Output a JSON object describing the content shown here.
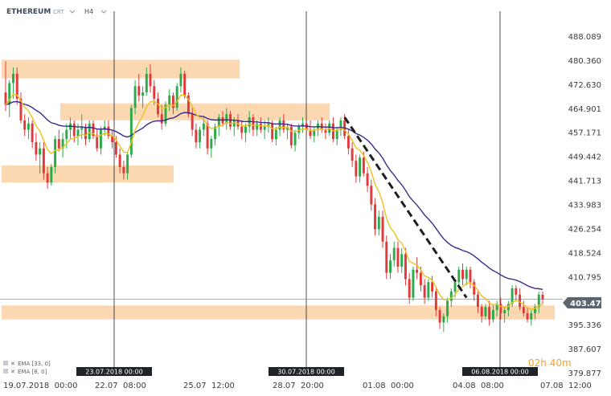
{
  "header": {
    "symbol": "ETHEREUM",
    "source": "CRT",
    "dropdown_icon": "chevron-down-icon",
    "timeframe": "H4"
  },
  "legend": [
    {
      "icon": "close-icon",
      "label": "EMA [33, 0]",
      "color": "#3b2a8a"
    },
    {
      "icon": "close-icon",
      "label": "EMA [8, 0]",
      "color": "#f0c020"
    }
  ],
  "countdown": "02h 40m",
  "current_price": "403.470",
  "colors": {
    "up": "#2eaa4a",
    "down": "#e03a3a",
    "ema8": "#f0c020",
    "ema33": "#3b2a8a",
    "zone": "#fbd4a8",
    "trendline": "#1e1e1e",
    "marker_bg": "#1f2328",
    "price_tag": "#5c6670"
  },
  "chart_data": {
    "type": "candlestick",
    "y_axis": {
      "range": [
        379.877,
        493.0
      ],
      "ticks": [
        "488.089",
        "480.360",
        "472.630",
        "464.901",
        "457.171",
        "449.442",
        "441.713",
        "433.983",
        "426.254",
        "418.524",
        "410.795",
        "403.470",
        "395.336",
        "387.607",
        "379.877"
      ]
    },
    "x_axis": {
      "ticks": [
        "19.07.2018  00:00",
        "22.07  08:00",
        "25.07  12:00",
        "28.07  20:00",
        "01.08  00:00",
        "04.08  08:00",
        "07.08  12:00"
      ]
    },
    "vertical_markers": [
      "23.07.2018 00:00",
      "30.07.2018 00:00",
      "06.08.2018 00:00"
    ],
    "horizontal_zones": [
      {
        "low": 474.5,
        "high": 480.5
      },
      {
        "low": 461.0,
        "high": 466.5
      },
      {
        "low": 441.0,
        "high": 446.5
      },
      {
        "low": 397.0,
        "high": 401.5
      }
    ],
    "trendline": {
      "from": {
        "index": 89,
        "price": 462.0
      },
      "to": {
        "index": 121,
        "price": 404.0
      }
    },
    "candles": [
      {
        "o": 470.0,
        "h": 480.0,
        "l": 464.0,
        "c": 466.0
      },
      {
        "o": 466.0,
        "h": 474.0,
        "l": 462.0,
        "c": 473.0
      },
      {
        "o": 473.0,
        "h": 478.0,
        "l": 468.0,
        "c": 476.0
      },
      {
        "o": 476.0,
        "h": 478.0,
        "l": 466.0,
        "c": 468.0
      },
      {
        "o": 468.0,
        "h": 470.0,
        "l": 460.0,
        "c": 461.0
      },
      {
        "o": 461.0,
        "h": 463.0,
        "l": 456.0,
        "c": 458.0
      },
      {
        "o": 458.0,
        "h": 462.0,
        "l": 455.0,
        "c": 460.0
      },
      {
        "o": 460.0,
        "h": 461.0,
        "l": 452.0,
        "c": 454.0
      },
      {
        "o": 454.0,
        "h": 457.0,
        "l": 448.0,
        "c": 450.0
      },
      {
        "o": 450.0,
        "h": 454.0,
        "l": 444.0,
        "c": 452.0
      },
      {
        "o": 452.0,
        "h": 454.0,
        "l": 442.0,
        "c": 444.0
      },
      {
        "o": 444.0,
        "h": 446.0,
        "l": 439.0,
        "c": 441.0
      },
      {
        "o": 441.0,
        "h": 447.0,
        "l": 440.0,
        "c": 446.0
      },
      {
        "o": 446.0,
        "h": 456.0,
        "l": 444.0,
        "c": 455.0
      },
      {
        "o": 455.0,
        "h": 458.0,
        "l": 451.0,
        "c": 452.0
      },
      {
        "o": 452.0,
        "h": 457.0,
        "l": 449.0,
        "c": 455.0
      },
      {
        "o": 455.0,
        "h": 460.0,
        "l": 452.0,
        "c": 458.0
      },
      {
        "o": 458.0,
        "h": 462.0,
        "l": 455.0,
        "c": 460.0
      },
      {
        "o": 460.0,
        "h": 461.0,
        "l": 454.0,
        "c": 456.0
      },
      {
        "o": 456.0,
        "h": 460.0,
        "l": 453.0,
        "c": 458.0
      },
      {
        "o": 458.0,
        "h": 463.0,
        "l": 455.0,
        "c": 459.0
      },
      {
        "o": 459.0,
        "h": 460.0,
        "l": 453.0,
        "c": 455.0
      },
      {
        "o": 455.0,
        "h": 461.0,
        "l": 454.0,
        "c": 460.0
      },
      {
        "o": 460.0,
        "h": 461.0,
        "l": 455.0,
        "c": 456.0
      },
      {
        "o": 456.0,
        "h": 458.0,
        "l": 451.0,
        "c": 452.0
      },
      {
        "o": 452.0,
        "h": 459.0,
        "l": 450.0,
        "c": 458.0
      },
      {
        "o": 458.0,
        "h": 461.0,
        "l": 456.0,
        "c": 459.0
      },
      {
        "o": 459.0,
        "h": 461.0,
        "l": 455.0,
        "c": 456.0
      },
      {
        "o": 456.0,
        "h": 458.0,
        "l": 452.0,
        "c": 454.0
      },
      {
        "o": 454.0,
        "h": 456.0,
        "l": 449.0,
        "c": 450.0
      },
      {
        "o": 450.0,
        "h": 452.0,
        "l": 444.0,
        "c": 446.0
      },
      {
        "o": 446.0,
        "h": 448.0,
        "l": 442.0,
        "c": 444.0
      },
      {
        "o": 444.0,
        "h": 451.0,
        "l": 442.0,
        "c": 450.0
      },
      {
        "o": 450.0,
        "h": 466.0,
        "l": 449.0,
        "c": 465.0
      },
      {
        "o": 465.0,
        "h": 474.0,
        "l": 463.0,
        "c": 472.0
      },
      {
        "o": 472.0,
        "h": 476.0,
        "l": 467.0,
        "c": 469.0
      },
      {
        "o": 469.0,
        "h": 472.0,
        "l": 465.0,
        "c": 470.0
      },
      {
        "o": 470.0,
        "h": 478.0,
        "l": 469.0,
        "c": 476.0
      },
      {
        "o": 476.0,
        "h": 479.0,
        "l": 470.0,
        "c": 472.0
      },
      {
        "o": 472.0,
        "h": 474.0,
        "l": 466.0,
        "c": 468.0
      },
      {
        "o": 468.0,
        "h": 470.0,
        "l": 462.0,
        "c": 463.0
      },
      {
        "o": 463.0,
        "h": 466.0,
        "l": 458.0,
        "c": 460.0
      },
      {
        "o": 460.0,
        "h": 467.0,
        "l": 459.0,
        "c": 466.0
      },
      {
        "o": 466.0,
        "h": 471.0,
        "l": 464.0,
        "c": 469.0
      },
      {
        "o": 469.0,
        "h": 470.0,
        "l": 463.0,
        "c": 465.0
      },
      {
        "o": 465.0,
        "h": 473.0,
        "l": 464.0,
        "c": 472.0
      },
      {
        "o": 472.0,
        "h": 478.0,
        "l": 470.0,
        "c": 476.0
      },
      {
        "o": 476.0,
        "h": 477.0,
        "l": 468.0,
        "c": 469.0
      },
      {
        "o": 469.0,
        "h": 470.0,
        "l": 462.0,
        "c": 463.0
      },
      {
        "o": 463.0,
        "h": 465.0,
        "l": 456.0,
        "c": 458.0
      },
      {
        "o": 458.0,
        "h": 460.0,
        "l": 452.0,
        "c": 454.0
      },
      {
        "o": 454.0,
        "h": 459.0,
        "l": 452.0,
        "c": 458.0
      },
      {
        "o": 458.0,
        "h": 462.0,
        "l": 456.0,
        "c": 460.0
      },
      {
        "o": 460.0,
        "h": 461.0,
        "l": 450.0,
        "c": 452.0
      },
      {
        "o": 452.0,
        "h": 456.0,
        "l": 449.0,
        "c": 455.0
      },
      {
        "o": 455.0,
        "h": 460.0,
        "l": 453.0,
        "c": 459.0
      },
      {
        "o": 459.0,
        "h": 463.0,
        "l": 456.0,
        "c": 462.0
      },
      {
        "o": 462.0,
        "h": 464.0,
        "l": 459.0,
        "c": 460.0
      },
      {
        "o": 460.0,
        "h": 465.0,
        "l": 458.0,
        "c": 463.0
      },
      {
        "o": 463.0,
        "h": 464.0,
        "l": 458.0,
        "c": 459.0
      },
      {
        "o": 459.0,
        "h": 462.0,
        "l": 456.0,
        "c": 461.0
      },
      {
        "o": 461.0,
        "h": 463.0,
        "l": 458.0,
        "c": 459.0
      },
      {
        "o": 459.0,
        "h": 461.0,
        "l": 455.0,
        "c": 457.0
      },
      {
        "o": 457.0,
        "h": 460.0,
        "l": 454.0,
        "c": 459.0
      },
      {
        "o": 459.0,
        "h": 464.0,
        "l": 457.0,
        "c": 462.0
      },
      {
        "o": 462.0,
        "h": 463.0,
        "l": 456.0,
        "c": 458.0
      },
      {
        "o": 458.0,
        "h": 461.0,
        "l": 456.0,
        "c": 460.0
      },
      {
        "o": 460.0,
        "h": 462.0,
        "l": 457.0,
        "c": 458.0
      },
      {
        "o": 458.0,
        "h": 461.0,
        "l": 455.0,
        "c": 459.0
      },
      {
        "o": 459.0,
        "h": 462.0,
        "l": 457.0,
        "c": 460.0
      },
      {
        "o": 460.0,
        "h": 461.0,
        "l": 454.0,
        "c": 455.0
      },
      {
        "o": 455.0,
        "h": 459.0,
        "l": 453.0,
        "c": 458.0
      },
      {
        "o": 458.0,
        "h": 462.0,
        "l": 456.0,
        "c": 461.0
      },
      {
        "o": 461.0,
        "h": 463.0,
        "l": 457.0,
        "c": 458.0
      },
      {
        "o": 458.0,
        "h": 460.0,
        "l": 455.0,
        "c": 459.0
      },
      {
        "o": 459.0,
        "h": 460.0,
        "l": 452.0,
        "c": 453.0
      },
      {
        "o": 453.0,
        "h": 458.0,
        "l": 451.0,
        "c": 457.0
      },
      {
        "o": 457.0,
        "h": 460.0,
        "l": 455.0,
        "c": 459.0
      },
      {
        "o": 459.0,
        "h": 462.0,
        "l": 457.0,
        "c": 460.0
      },
      {
        "o": 460.0,
        "h": 462.0,
        "l": 456.0,
        "c": 458.0
      },
      {
        "o": 458.0,
        "h": 461.0,
        "l": 455.0,
        "c": 456.0
      },
      {
        "o": 456.0,
        "h": 459.0,
        "l": 454.0,
        "c": 458.0
      },
      {
        "o": 458.0,
        "h": 461.0,
        "l": 456.0,
        "c": 460.0
      },
      {
        "o": 460.0,
        "h": 462.0,
        "l": 457.0,
        "c": 458.0
      },
      {
        "o": 458.0,
        "h": 460.0,
        "l": 455.0,
        "c": 457.0
      },
      {
        "o": 457.0,
        "h": 461.0,
        "l": 456.0,
        "c": 460.0
      },
      {
        "o": 460.0,
        "h": 462.0,
        "l": 454.0,
        "c": 455.0
      },
      {
        "o": 455.0,
        "h": 459.0,
        "l": 453.0,
        "c": 458.0
      },
      {
        "o": 458.0,
        "h": 462.0,
        "l": 456.0,
        "c": 461.0
      },
      {
        "o": 461.0,
        "h": 463.0,
        "l": 455.0,
        "c": 456.0
      },
      {
        "o": 456.0,
        "h": 458.0,
        "l": 450.0,
        "c": 452.0
      },
      {
        "o": 452.0,
        "h": 454.0,
        "l": 446.0,
        "c": 448.0
      },
      {
        "o": 448.0,
        "h": 450.0,
        "l": 441.0,
        "c": 443.0
      },
      {
        "o": 443.0,
        "h": 450.0,
        "l": 441.0,
        "c": 449.0
      },
      {
        "o": 449.0,
        "h": 451.0,
        "l": 443.0,
        "c": 444.0
      },
      {
        "o": 444.0,
        "h": 446.0,
        "l": 438.0,
        "c": 440.0
      },
      {
        "o": 440.0,
        "h": 442.0,
        "l": 432.0,
        "c": 434.0
      },
      {
        "o": 434.0,
        "h": 436.0,
        "l": 424.0,
        "c": 426.0
      },
      {
        "o": 426.0,
        "h": 432.0,
        "l": 424.0,
        "c": 430.0
      },
      {
        "o": 430.0,
        "h": 432.0,
        "l": 420.0,
        "c": 422.0
      },
      {
        "o": 422.0,
        "h": 424.0,
        "l": 410.0,
        "c": 412.0
      },
      {
        "o": 412.0,
        "h": 418.0,
        "l": 410.0,
        "c": 416.0
      },
      {
        "o": 416.0,
        "h": 422.0,
        "l": 414.0,
        "c": 420.0
      },
      {
        "o": 420.0,
        "h": 422.0,
        "l": 412.0,
        "c": 414.0
      },
      {
        "o": 414.0,
        "h": 420.0,
        "l": 412.0,
        "c": 418.0
      },
      {
        "o": 418.0,
        "h": 420.0,
        "l": 408.0,
        "c": 410.0
      },
      {
        "o": 410.0,
        "h": 412.0,
        "l": 402.0,
        "c": 404.0
      },
      {
        "o": 404.0,
        "h": 414.0,
        "l": 403.0,
        "c": 413.0
      },
      {
        "o": 413.0,
        "h": 417.0,
        "l": 410.0,
        "c": 412.0
      },
      {
        "o": 412.0,
        "h": 414.0,
        "l": 406.0,
        "c": 408.0
      },
      {
        "o": 408.0,
        "h": 410.0,
        "l": 402.0,
        "c": 404.0
      },
      {
        "o": 404.0,
        "h": 410.0,
        "l": 403.0,
        "c": 409.0
      },
      {
        "o": 409.0,
        "h": 411.0,
        "l": 404.0,
        "c": 406.0
      },
      {
        "o": 406.0,
        "h": 407.0,
        "l": 398.0,
        "c": 400.0
      },
      {
        "o": 400.0,
        "h": 401.0,
        "l": 394.0,
        "c": 396.0
      },
      {
        "o": 396.0,
        "h": 399.0,
        "l": 393.0,
        "c": 398.0
      },
      {
        "o": 398.0,
        "h": 404.0,
        "l": 396.0,
        "c": 403.0
      },
      {
        "o": 403.0,
        "h": 407.0,
        "l": 401.0,
        "c": 406.0
      },
      {
        "o": 406.0,
        "h": 410.0,
        "l": 404.0,
        "c": 409.0
      },
      {
        "o": 409.0,
        "h": 414.0,
        "l": 407.0,
        "c": 413.0
      },
      {
        "o": 413.0,
        "h": 415.0,
        "l": 408.0,
        "c": 410.0
      },
      {
        "o": 410.0,
        "h": 414.0,
        "l": 408.0,
        "c": 413.0
      },
      {
        "o": 413.0,
        "h": 414.0,
        "l": 407.0,
        "c": 409.0
      },
      {
        "o": 409.0,
        "h": 410.0,
        "l": 403.0,
        "c": 405.0
      },
      {
        "o": 405.0,
        "h": 406.0,
        "l": 399.0,
        "c": 401.0
      },
      {
        "o": 401.0,
        "h": 402.0,
        "l": 396.0,
        "c": 398.0
      },
      {
        "o": 398.0,
        "h": 402.0,
        "l": 397.0,
        "c": 401.0
      },
      {
        "o": 401.0,
        "h": 403.0,
        "l": 395.0,
        "c": 397.0
      },
      {
        "o": 397.0,
        "h": 402.0,
        "l": 396.0,
        "c": 400.0
      },
      {
        "o": 400.0,
        "h": 403.0,
        "l": 398.0,
        "c": 402.0
      },
      {
        "o": 402.0,
        "h": 404.0,
        "l": 397.0,
        "c": 399.0
      },
      {
        "o": 399.0,
        "h": 401.0,
        "l": 396.0,
        "c": 400.0
      },
      {
        "o": 400.0,
        "h": 403.0,
        "l": 398.0,
        "c": 402.0
      },
      {
        "o": 402.0,
        "h": 408.0,
        "l": 401.0,
        "c": 407.0
      },
      {
        "o": 407.0,
        "h": 408.0,
        "l": 403.0,
        "c": 405.0
      },
      {
        "o": 405.0,
        "h": 407.0,
        "l": 400.0,
        "c": 401.0
      },
      {
        "o": 401.0,
        "h": 403.0,
        "l": 398.0,
        "c": 399.0
      },
      {
        "o": 399.0,
        "h": 401.0,
        "l": 396.0,
        "c": 397.0
      },
      {
        "o": 397.0,
        "h": 400.0,
        "l": 395.0,
        "c": 399.0
      },
      {
        "o": 399.0,
        "h": 402.0,
        "l": 397.0,
        "c": 401.0
      },
      {
        "o": 401.0,
        "h": 406.0,
        "l": 399.0,
        "c": 405.0
      },
      {
        "o": 405.0,
        "h": 406.0,
        "l": 402.0,
        "c": 403.47
      }
    ]
  }
}
